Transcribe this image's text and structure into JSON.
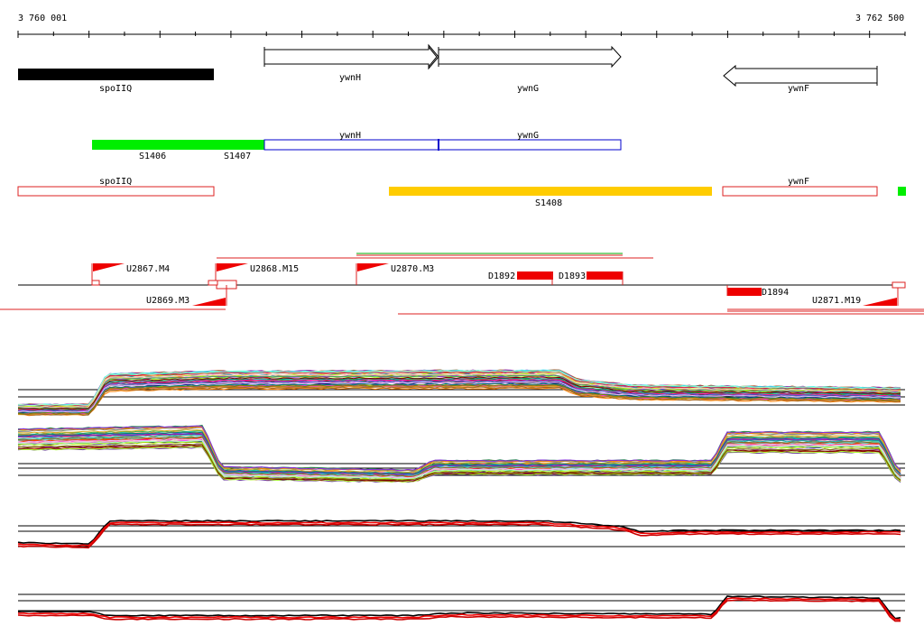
{
  "ruler": {
    "start_label": "3 760 001",
    "end_label": "3 762 500"
  },
  "genes": {
    "spoIIQ": "spoIIQ",
    "ywnH": "ywnH",
    "ywnG": "ywnG",
    "ywnF": "ywnF"
  },
  "segments": {
    "s1406": "S1406",
    "s1407": "S1407",
    "s1408": "S1408"
  },
  "features": {
    "u2867": "U2867.M4",
    "u2868": "U2868.M15",
    "u2870": "U2870.M3",
    "u2869": "U2869.M3",
    "u2871": "U2871.M19",
    "d1892": "D1892",
    "d1893": "D1893",
    "d1894": "D1894"
  },
  "colors": {
    "segment_green": "#00ee00",
    "segment_gold": "#ffcc00",
    "outline_red": "#dd2222",
    "outline_blue": "#0000cc",
    "feature_red": "#ee0000"
  }
}
